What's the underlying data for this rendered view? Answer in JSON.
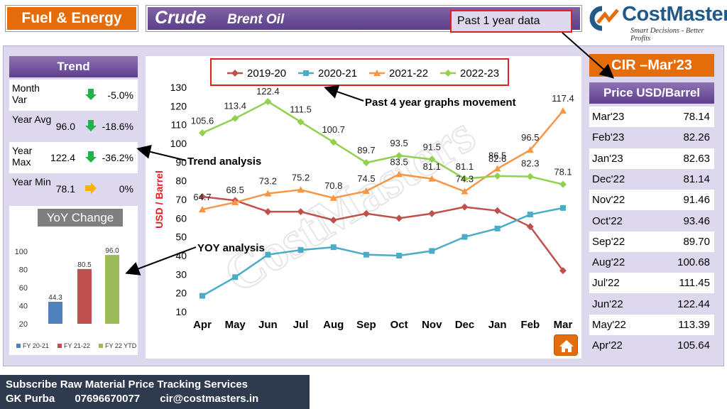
{
  "header": {
    "category": "Fuel & Energy",
    "title": "Crude",
    "subtitle": "Brent Oil",
    "past_year_label": "Past 1 year data"
  },
  "logo": {
    "name": "CostMasters",
    "tagline": "Smart Decisions - Better Profits"
  },
  "trend": {
    "title": "Trend",
    "rows": [
      {
        "label": "Month Var",
        "value": "",
        "direction": "down",
        "change": "-5.0%"
      },
      {
        "label": "Year Avg",
        "value": "96.0",
        "direction": "down",
        "change": "-18.6%"
      },
      {
        "label": "Year Max",
        "value": "122.4",
        "direction": "down",
        "change": "-36.2%"
      },
      {
        "label": "Year Min",
        "value": "78.1",
        "direction": "right",
        "change": "0%"
      }
    ]
  },
  "yoy": {
    "title": "YoY Change"
  },
  "annotations": {
    "trend_analysis": "Trend analysis",
    "yoy_analysis": "YOY analysis",
    "past_4_year": "Past 4 year graphs movement"
  },
  "cir": {
    "title": "CIR –Mar'23",
    "price_header": "Price  USD/Barrel",
    "rows": [
      {
        "month": "Mar'23",
        "price": "78.14"
      },
      {
        "month": "Feb'23",
        "price": "82.26"
      },
      {
        "month": "Jan'23",
        "price": "82.63"
      },
      {
        "month": "Dec'22",
        "price": "81.14"
      },
      {
        "month": "Nov'22",
        "price": "91.46"
      },
      {
        "month": "Oct'22",
        "price": "93.46"
      },
      {
        "month": "Sep'22",
        "price": "89.70"
      },
      {
        "month": "Aug'22",
        "price": "100.68"
      },
      {
        "month": "Jul'22",
        "price": "111.45"
      },
      {
        "month": "Jun'22",
        "price": "122.44"
      },
      {
        "month": "May'22",
        "price": "113.39"
      },
      {
        "month": "Apr'22",
        "price": "105.64"
      }
    ]
  },
  "footer": {
    "line1": "Subscribe Raw Material Price Tracking Services",
    "name": "GK Purba",
    "phone": "07696670077",
    "email": "cir@costmasters.in"
  },
  "colors": {
    "orange": "#e46c0a",
    "purple": "#5e3f8f",
    "light_purple": "#ddd8ee",
    "green_arrow": "#22b14c",
    "yellow_arrow": "#f5b400"
  },
  "chart_data": [
    {
      "type": "line",
      "categories": [
        "Apr",
        "May",
        "Jun",
        "Jul",
        "Aug",
        "Sep",
        "Oct",
        "Nov",
        "Dec",
        "Jan",
        "Feb",
        "Mar"
      ],
      "ylabel": "USD / Barrel",
      "ylim": [
        10,
        130
      ],
      "yticks": [
        10,
        20,
        30,
        40,
        50,
        60,
        70,
        80,
        90,
        100,
        110,
        120,
        130
      ],
      "grid": false,
      "legend": "top",
      "series": [
        {
          "name": "2019-20",
          "color": "#c0504d",
          "marker": "diamond",
          "values": [
            71.5,
            69.5,
            63.5,
            63.5,
            59,
            62.5,
            60,
            62.5,
            66,
            64,
            55.5,
            32
          ],
          "labels": [
            "",
            "",
            "",
            "",
            "",
            "",
            "",
            "",
            "",
            "",
            "",
            ""
          ]
        },
        {
          "name": "2020-21",
          "color": "#4bacc6",
          "marker": "square",
          "values": [
            18.5,
            28.5,
            40.5,
            43,
            44.5,
            40.5,
            40,
            42.5,
            50,
            54.5,
            62,
            65.5
          ],
          "labels": [
            "",
            "",
            "",
            "",
            "",
            "",
            "",
            "",
            "",
            "",
            "",
            ""
          ]
        },
        {
          "name": "2021-22",
          "color": "#f79646",
          "marker": "triangle",
          "values": [
            64.7,
            68.5,
            73.2,
            75.2,
            70.8,
            74.5,
            83.5,
            81.1,
            74.3,
            86.5,
            96.5,
            117.4
          ],
          "labels": [
            "64.7",
            "68.5",
            "73.2",
            "75.2",
            "70.8",
            "74.5",
            "83.5",
            "81.1",
            "74.3",
            "86.5",
            "96.5",
            "117.4"
          ]
        },
        {
          "name": "2022-23",
          "color": "#92d050",
          "marker": "diamond",
          "values": [
            105.6,
            113.4,
            122.4,
            111.5,
            100.7,
            89.7,
            93.5,
            91.5,
            81.1,
            82.6,
            82.3,
            78.1
          ],
          "labels": [
            "105.6",
            "113.4",
            "122.4",
            "111.5",
            "100.7",
            "89.7",
            "93.5",
            "91.5",
            "81.1",
            "82.6",
            "82.3",
            "78.1"
          ]
        }
      ]
    },
    {
      "type": "bar",
      "title": "YoY Change",
      "categories": [
        "FY 20-21",
        "FY 21-22",
        "FY 22 YTD"
      ],
      "values": [
        44.3,
        80.5,
        96.0
      ],
      "labels": [
        "44.3",
        "80.5",
        "96.0"
      ],
      "colors": [
        "#4f81bd",
        "#c0504d",
        "#9bbb59"
      ],
      "ylim": [
        20,
        100
      ],
      "yticks": [
        20,
        40,
        60,
        80,
        100
      ],
      "legend": "bottom"
    }
  ]
}
